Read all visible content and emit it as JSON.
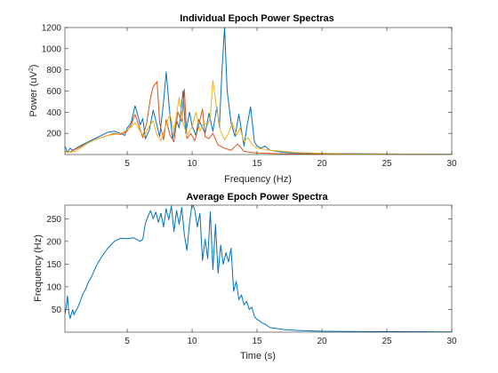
{
  "chart_data": [
    {
      "type": "line",
      "title": "Individual Epoch Power Spectras",
      "xlabel": "Frequency (Hz)",
      "ylabel_main": "Power (uV",
      "ylabel_sup": "2",
      "ylabel_tail": ")",
      "xlim": [
        0.2,
        30
      ],
      "ylim": [
        0,
        1200
      ],
      "xticks": [
        5,
        10,
        15,
        20,
        25,
        30
      ],
      "yticks": [
        200,
        400,
        600,
        800,
        1000,
        1200
      ],
      "grid": false,
      "series": [
        {
          "color": "#0072BD",
          "x": [
            0.2,
            0.4,
            0.6,
            0.8,
            1,
            1.5,
            2,
            2.5,
            3,
            3.5,
            4,
            4.5,
            4.8,
            5,
            5.3,
            5.6,
            5.8,
            6,
            6.2,
            6.4,
            6.7,
            7,
            7.2,
            7.5,
            7.8,
            8,
            8.3,
            8.5,
            8.8,
            9,
            9.3,
            9.5,
            9.8,
            10,
            10.3,
            10.5,
            10.8,
            11,
            11.3,
            11.6,
            11.9,
            12.1,
            12.3,
            12.5,
            12.7,
            13,
            13.3,
            13.6,
            14,
            14.2,
            14.5,
            14.8,
            15,
            15.3,
            15.6,
            16,
            16.5,
            17,
            18,
            20,
            22,
            25,
            28,
            30
          ],
          "y": [
            80,
            20,
            60,
            40,
            55,
            90,
            120,
            150,
            180,
            210,
            220,
            200,
            180,
            250,
            300,
            460,
            380,
            280,
            340,
            150,
            230,
            420,
            320,
            170,
            500,
            780,
            360,
            150,
            320,
            250,
            600,
            200,
            400,
            270,
            180,
            330,
            250,
            200,
            390,
            220,
            450,
            260,
            800,
            1200,
            600,
            300,
            170,
            380,
            80,
            250,
            450,
            120,
            80,
            60,
            80,
            40,
            30,
            20,
            15,
            10,
            8,
            5,
            3,
            2
          ]
        },
        {
          "color": "#D95319",
          "x": [
            0.2,
            0.5,
            1,
            1.5,
            2,
            2.5,
            3,
            3.5,
            4,
            4.5,
            5,
            5.3,
            5.6,
            5.9,
            6.2,
            6.5,
            6.8,
            7,
            7.3,
            7.5,
            7.8,
            8,
            8.3,
            8.6,
            8.9,
            9.2,
            9.4,
            9.6,
            9.9,
            10.2,
            10.5,
            10.8,
            11,
            11.3,
            11.6,
            12,
            12.5,
            13,
            13.5,
            14,
            14.5,
            15,
            16,
            17,
            18,
            20,
            22,
            25,
            28,
            30
          ],
          "y": [
            30,
            20,
            50,
            80,
            110,
            140,
            160,
            180,
            200,
            190,
            220,
            280,
            380,
            270,
            160,
            300,
            540,
            640,
            690,
            300,
            140,
            330,
            180,
            120,
            400,
            310,
            620,
            150,
            200,
            130,
            270,
            430,
            170,
            150,
            200,
            90,
            60,
            40,
            100,
            30,
            20,
            15,
            10,
            5,
            5,
            3,
            2,
            2,
            1,
            1
          ]
        },
        {
          "color": "#EDB120",
          "x": [
            0.2,
            0.5,
            1,
            1.5,
            2,
            2.5,
            3,
            3.5,
            4,
            4.5,
            5,
            5.3,
            5.6,
            6,
            6.3,
            6.6,
            7,
            7.3,
            7.6,
            8,
            8.3,
            8.6,
            9,
            9.3,
            9.6,
            10,
            10.3,
            10.6,
            10.9,
            11.2,
            11.4,
            11.6,
            11.9,
            12.2,
            12.5,
            12.8,
            13.1,
            13.4,
            13.7,
            14,
            14.3,
            14.6,
            15,
            15.5,
            16,
            17,
            18,
            20,
            22,
            25,
            28,
            30
          ],
          "y": [
            25,
            20,
            30,
            70,
            110,
            140,
            160,
            180,
            190,
            200,
            230,
            260,
            300,
            220,
            170,
            250,
            320,
            180,
            130,
            290,
            380,
            220,
            540,
            300,
            180,
            260,
            400,
            220,
            300,
            280,
            350,
            700,
            420,
            220,
            140,
            200,
            300,
            180,
            250,
            120,
            160,
            100,
            60,
            50,
            40,
            30,
            20,
            10,
            5,
            3,
            2,
            1
          ]
        }
      ]
    },
    {
      "type": "line",
      "title": "Average Epoch Power Spectra",
      "xlabel": "Time (s)",
      "ylabel": "Frequency (Hz)",
      "xlim": [
        0.2,
        30
      ],
      "ylim": [
        0,
        280
      ],
      "xticks": [
        5,
        10,
        15,
        20,
        25,
        30
      ],
      "yticks": [
        50,
        100,
        150,
        200,
        250
      ],
      "grid": false,
      "series": [
        {
          "color": "#0072BD",
          "x": [
            0.2,
            0.3,
            0.4,
            0.5,
            0.6,
            0.7,
            0.8,
            0.9,
            1.0,
            1.2,
            1.4,
            1.6,
            1.8,
            2.0,
            2.3,
            2.6,
            3.0,
            3.5,
            4.0,
            4.5,
            5.0,
            5.5,
            6.0,
            6.2,
            6.4,
            6.6,
            6.8,
            7.0,
            7.2,
            7.4,
            7.6,
            7.8,
            8.0,
            8.2,
            8.4,
            8.6,
            8.8,
            9.0,
            9.2,
            9.4,
            9.6,
            9.8,
            10.0,
            10.2,
            10.4,
            10.6,
            10.8,
            11.0,
            11.2,
            11.4,
            11.6,
            11.8,
            12.0,
            12.2,
            12.4,
            12.6,
            12.8,
            13.0,
            13.2,
            13.4,
            13.6,
            13.8,
            14.0,
            14.2,
            14.4,
            14.6,
            14.8,
            15.0,
            15.2,
            15.4,
            15.6,
            15.8,
            16.0,
            16.5,
            17,
            17.5,
            18,
            19,
            20,
            22,
            24,
            26,
            28,
            30
          ],
          "y": [
            40,
            55,
            80,
            45,
            30,
            40,
            50,
            38,
            45,
            55,
            70,
            85,
            95,
            110,
            125,
            145,
            165,
            185,
            200,
            207,
            206,
            208,
            200,
            205,
            240,
            255,
            268,
            250,
            265,
            242,
            262,
            232,
            272,
            248,
            278,
            222,
            268,
            238,
            275,
            215,
            180,
            240,
            285,
            270,
            232,
            262,
            158,
            205,
            162,
            265,
            138,
            238,
            130,
            192,
            150,
            175,
            155,
            185,
            90,
            112,
            72,
            82,
            60,
            68,
            50,
            55,
            35,
            28,
            25,
            20,
            18,
            14,
            10,
            8,
            6,
            5,
            4,
            3,
            2,
            1.5,
            1,
            1,
            0.8,
            0.5
          ]
        }
      ]
    }
  ]
}
